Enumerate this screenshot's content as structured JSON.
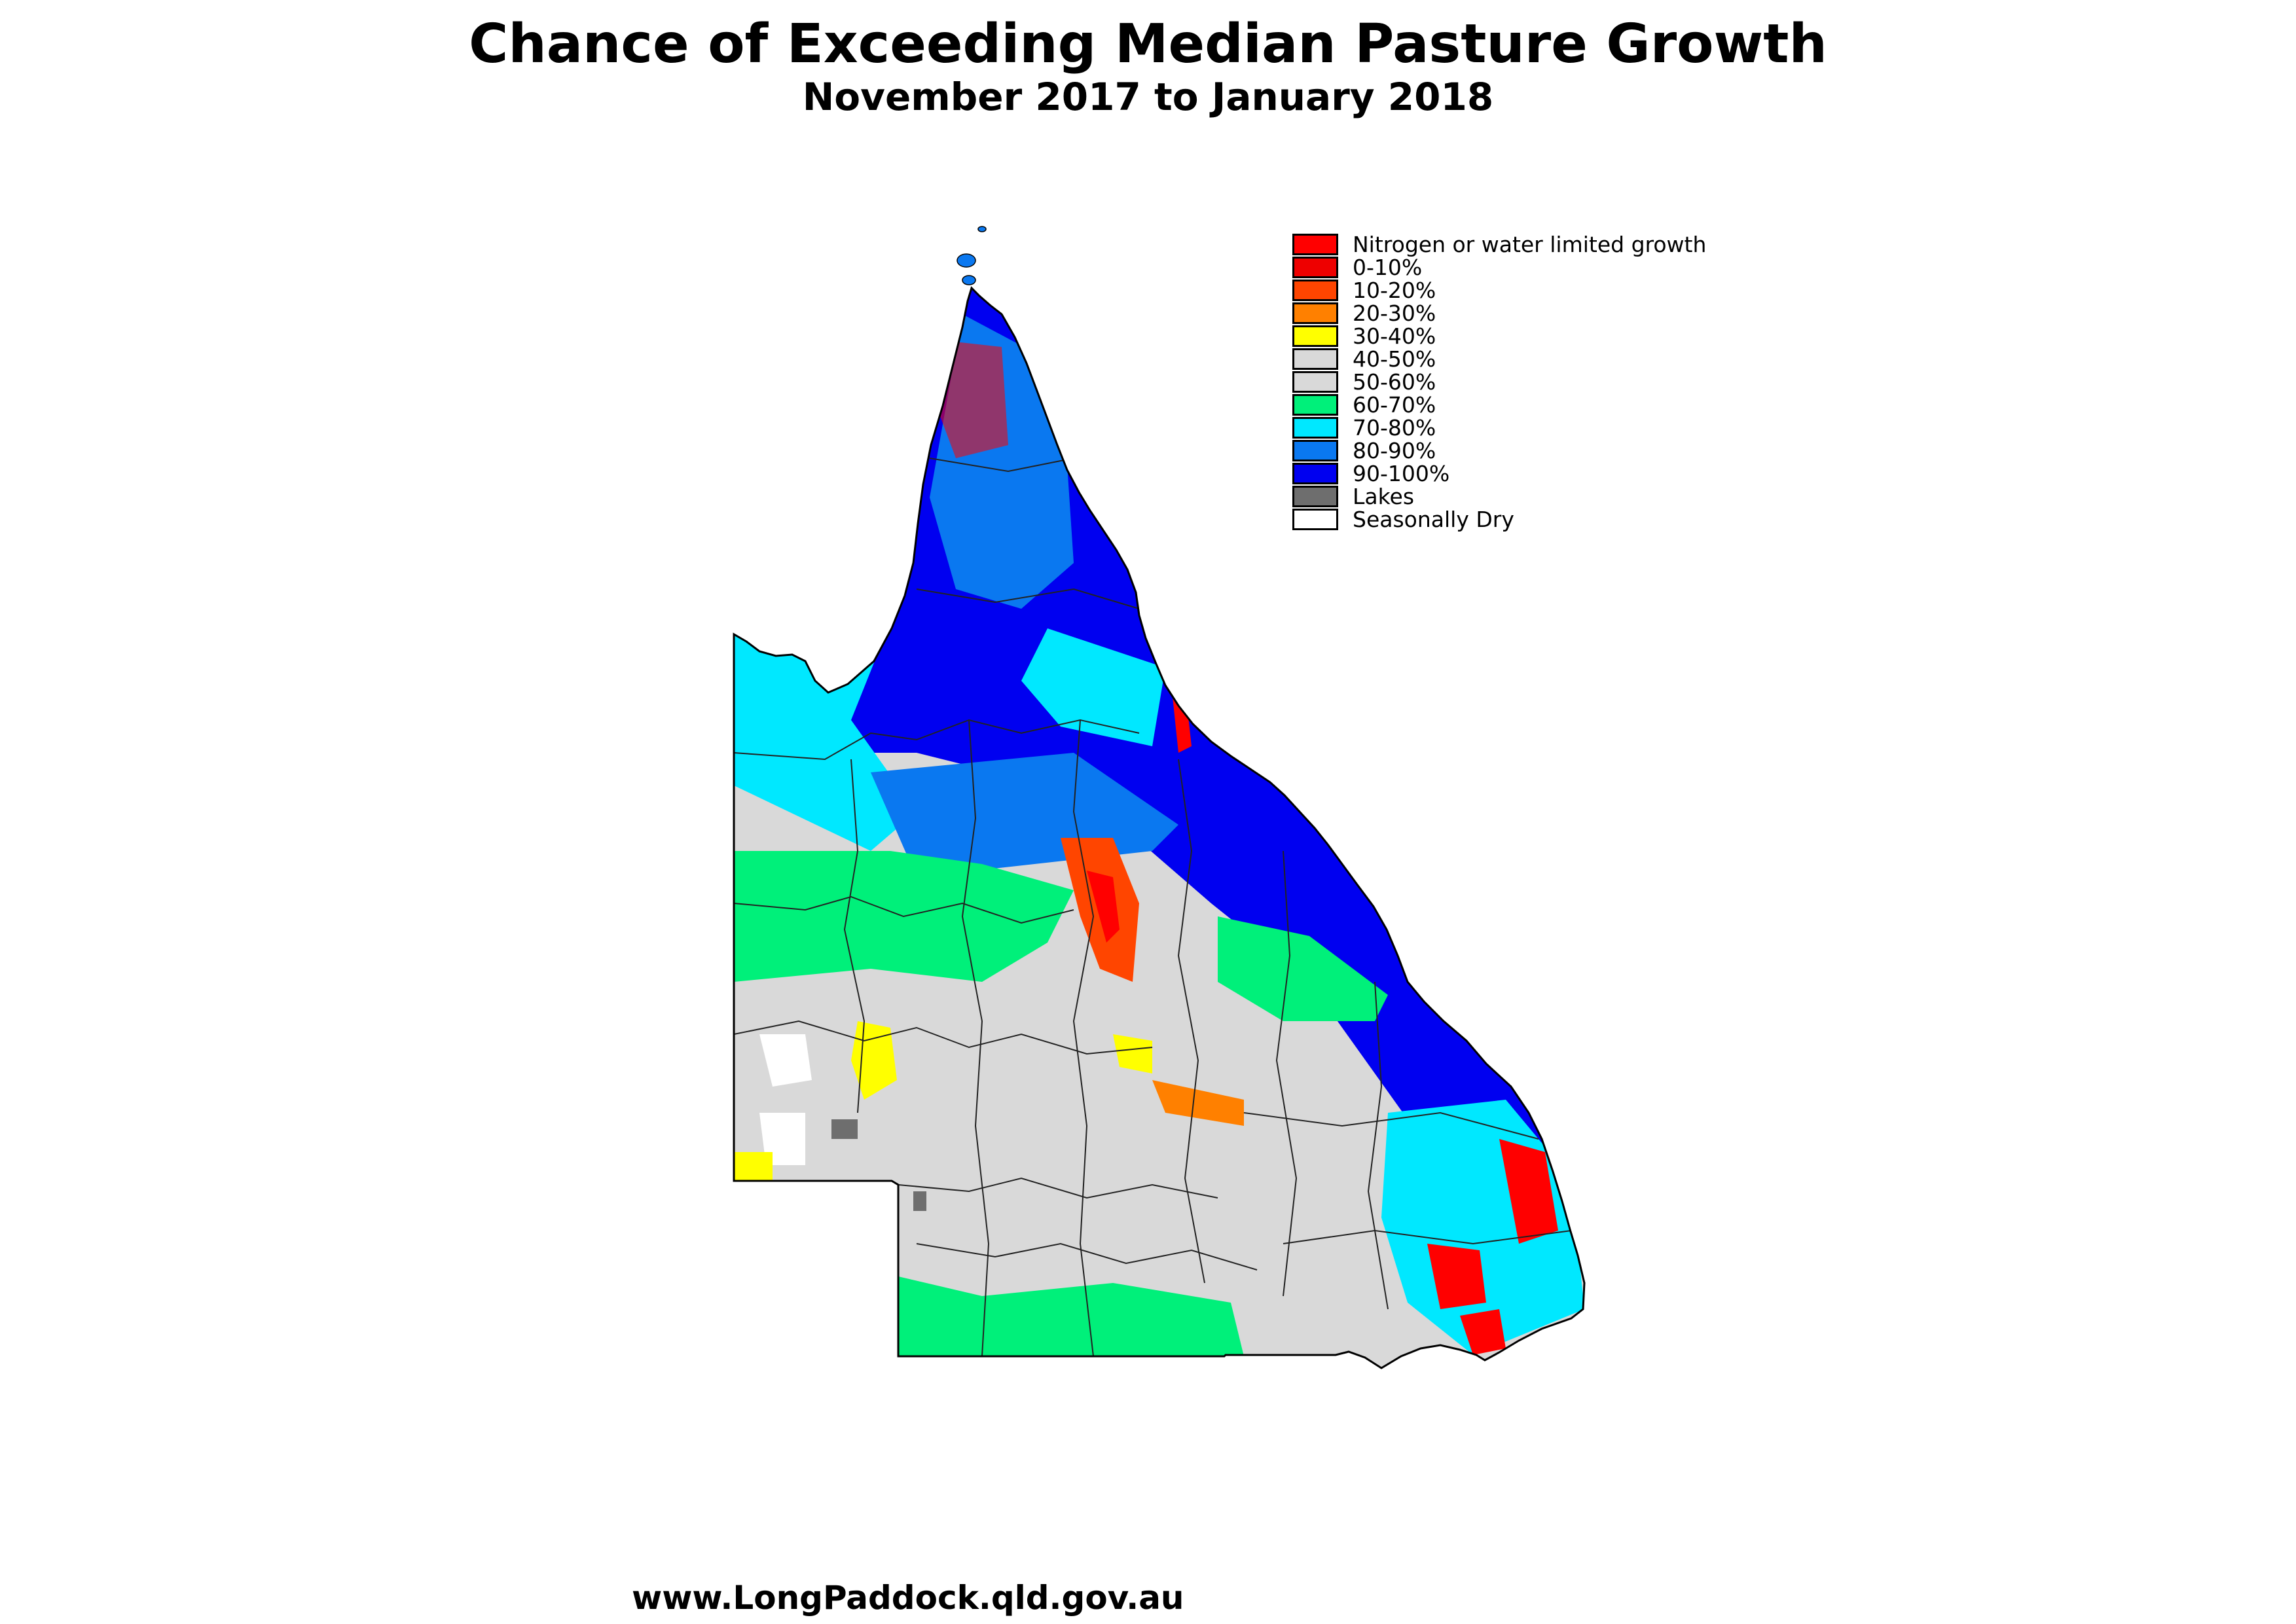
{
  "header": {
    "title": "Chance of Exceeding Median Pasture Growth",
    "subtitle": "November 2017 to January 2018"
  },
  "legend": {
    "placement": "top-right",
    "items": [
      {
        "label": "Nitrogen or water limited growth",
        "color": "#ff0000"
      },
      {
        "label": "0-10%",
        "color": "#ee0000"
      },
      {
        "label": "10-20%",
        "color": "#ff4500"
      },
      {
        "label": "20-30%",
        "color": "#ff8000"
      },
      {
        "label": "30-40%",
        "color": "#ffff00"
      },
      {
        "label": "40-50%",
        "color": "#d9d9d9"
      },
      {
        "label": "50-60%",
        "color": "#d9d9d9"
      },
      {
        "label": "60-70%",
        "color": "#00f07a"
      },
      {
        "label": "70-80%",
        "color": "#00e8ff"
      },
      {
        "label": "80-90%",
        "color": "#0a78f0"
      },
      {
        "label": "90-100%",
        "color": "#0000f0"
      },
      {
        "label": "Lakes",
        "color": "#6e6e6e"
      },
      {
        "label": "Seasonally Dry",
        "color": "#ffffff"
      }
    ]
  },
  "map": {
    "region": "Queensland",
    "colors": {
      "outline": "#000000",
      "boundaries": "#222222"
    }
  },
  "footer": {
    "url": "www.LongPaddock.qld.gov.au"
  }
}
